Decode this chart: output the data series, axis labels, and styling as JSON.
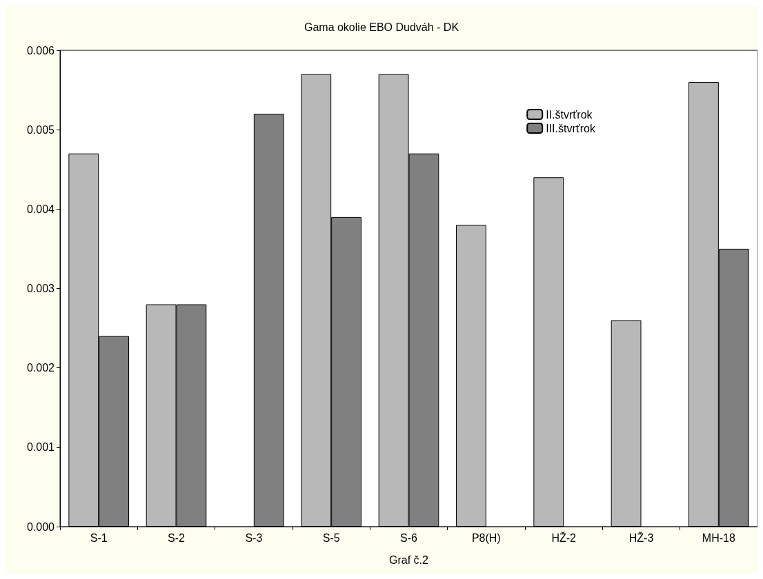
{
  "chart_data": {
    "type": "bar",
    "title": "Gama okolie EBO Dudváh - DK",
    "xlabel": "Graf č.2",
    "categories": [
      "S-1",
      "S-2",
      "S-3",
      "S-5",
      "S-6",
      "P8(H)",
      "HŽ-2",
      "HŽ-3",
      "MH-18"
    ],
    "series": [
      {
        "name": "II.štvrťrok",
        "color": "#b8b8b8",
        "values": [
          0.0047,
          0.0028,
          null,
          0.0057,
          0.0057,
          0.0038,
          0.0044,
          0.0026,
          0.0056
        ]
      },
      {
        "name": "III.štvrťrok",
        "color": "#808080",
        "values": [
          0.0024,
          0.0028,
          0.0052,
          0.0039,
          0.0047,
          null,
          null,
          null,
          0.0035
        ]
      }
    ],
    "ylim": [
      0,
      0.006
    ],
    "yticks": [
      {
        "value": 0,
        "label": "0.000"
      },
      {
        "value": 0.001,
        "label": "0.001"
      },
      {
        "value": 0.002,
        "label": "0.002"
      },
      {
        "value": 0.003,
        "label": "0.003"
      },
      {
        "value": 0.004,
        "label": "0.004"
      },
      {
        "value": 0.005,
        "label": "0.005"
      },
      {
        "value": 0.006,
        "label": "0.006"
      }
    ],
    "grid": false,
    "legend": "top right"
  }
}
